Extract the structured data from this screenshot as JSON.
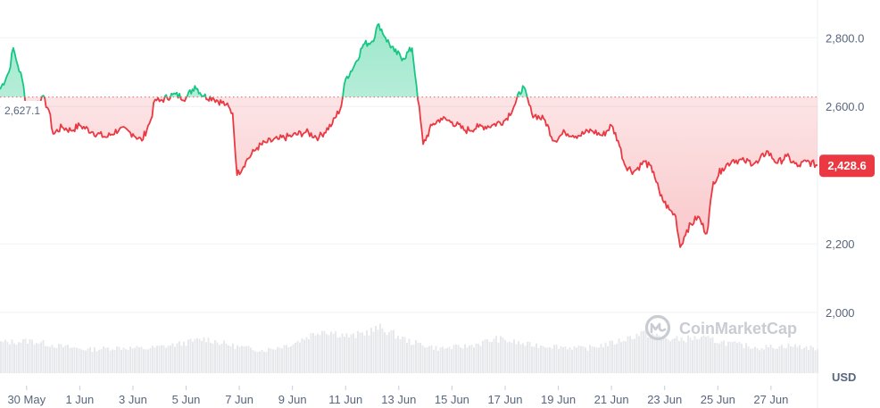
{
  "chart_data": {
    "type": "area",
    "currency": "USD",
    "reference_value": 2627.1,
    "reference_label": "2,627.1",
    "last_value": 2428.6,
    "last_label": "2,428.6",
    "ylim": [
      1870,
      2910
    ],
    "y_ticks": [
      {
        "value": 2000,
        "label": "2,000"
      },
      {
        "value": 2200,
        "label": "2,200"
      },
      {
        "value": 2600,
        "label": "2,600.0"
      },
      {
        "value": 2800,
        "label": "2,800.0"
      }
    ],
    "x_range": [
      "2024-05-29",
      "2024-06-28 18:00"
    ],
    "x_ticks": [
      {
        "date": "2024-05-30",
        "label": "30 May"
      },
      {
        "date": "2024-06-01",
        "label": "1 Jun"
      },
      {
        "date": "2024-06-03",
        "label": "3 Jun"
      },
      {
        "date": "2024-06-05",
        "label": "5 Jun"
      },
      {
        "date": "2024-06-07",
        "label": "7 Jun"
      },
      {
        "date": "2024-06-09",
        "label": "9 Jun"
      },
      {
        "date": "2024-06-11",
        "label": "11 Jun"
      },
      {
        "date": "2024-06-13",
        "label": "13 Jun"
      },
      {
        "date": "2024-06-15",
        "label": "15 Jun"
      },
      {
        "date": "2024-06-17",
        "label": "17 Jun"
      },
      {
        "date": "2024-06-19",
        "label": "19 Jun"
      },
      {
        "date": "2024-06-21",
        "label": "21 Jun"
      },
      {
        "date": "2024-06-23",
        "label": "23 Jun"
      },
      {
        "date": "2024-06-25",
        "label": "25 Jun"
      },
      {
        "date": "2024-06-27",
        "label": "27 Jun"
      }
    ],
    "series": [
      {
        "points": [
          [
            "2024-05-29 00:00",
            2650
          ],
          [
            "2024-05-29 08:00",
            2700
          ],
          [
            "2024-05-29 12:00",
            2770
          ],
          [
            "2024-05-29 16:00",
            2720
          ],
          [
            "2024-05-29 20:00",
            2680
          ],
          [
            "2024-05-30 00:00",
            2600
          ],
          [
            "2024-05-30 04:00",
            2585
          ],
          [
            "2024-05-30 10:00",
            2615
          ],
          [
            "2024-05-30 14:00",
            2630
          ],
          [
            "2024-05-30 20:00",
            2590
          ],
          [
            "2024-05-31 00:00",
            2520
          ],
          [
            "2024-05-31 08:00",
            2540
          ],
          [
            "2024-05-31 16:00",
            2530
          ],
          [
            "2024-06-01 00:00",
            2545
          ],
          [
            "2024-06-01 12:00",
            2525
          ],
          [
            "2024-06-02 00:00",
            2510
          ],
          [
            "2024-06-02 12:00",
            2535
          ],
          [
            "2024-06-03 00:00",
            2520
          ],
          [
            "2024-06-03 08:00",
            2500
          ],
          [
            "2024-06-03 16:00",
            2560
          ],
          [
            "2024-06-03 20:00",
            2620
          ],
          [
            "2024-06-04 00:00",
            2615
          ],
          [
            "2024-06-04 12:00",
            2635
          ],
          [
            "2024-06-05 00:00",
            2625
          ],
          [
            "2024-06-05 08:00",
            2660
          ],
          [
            "2024-06-05 16:00",
            2630
          ],
          [
            "2024-06-06 00:00",
            2625
          ],
          [
            "2024-06-06 12:00",
            2605
          ],
          [
            "2024-06-06 18:00",
            2580
          ],
          [
            "2024-06-06 22:00",
            2400
          ],
          [
            "2024-06-07 06:00",
            2440
          ],
          [
            "2024-06-07 16:00",
            2480
          ],
          [
            "2024-06-08 00:00",
            2495
          ],
          [
            "2024-06-08 12:00",
            2505
          ],
          [
            "2024-06-09 00:00",
            2515
          ],
          [
            "2024-06-09 12:00",
            2525
          ],
          [
            "2024-06-10 00:00",
            2510
          ],
          [
            "2024-06-10 12:00",
            2550
          ],
          [
            "2024-06-10 20:00",
            2600
          ],
          [
            "2024-06-11 00:00",
            2680
          ],
          [
            "2024-06-11 08:00",
            2720
          ],
          [
            "2024-06-11 16:00",
            2780
          ],
          [
            "2024-06-12 00:00",
            2790
          ],
          [
            "2024-06-12 06:00",
            2840
          ],
          [
            "2024-06-12 12:00",
            2800
          ],
          [
            "2024-06-12 20:00",
            2760
          ],
          [
            "2024-06-13 04:00",
            2740
          ],
          [
            "2024-06-13 12:00",
            2770
          ],
          [
            "2024-06-13 16:00",
            2660
          ],
          [
            "2024-06-13 22:00",
            2490
          ],
          [
            "2024-06-14 06:00",
            2545
          ],
          [
            "2024-06-14 14:00",
            2565
          ],
          [
            "2024-06-15 00:00",
            2555
          ],
          [
            "2024-06-15 12:00",
            2530
          ],
          [
            "2024-06-16 00:00",
            2540
          ],
          [
            "2024-06-16 12:00",
            2545
          ],
          [
            "2024-06-17 00:00",
            2560
          ],
          [
            "2024-06-17 08:00",
            2600
          ],
          [
            "2024-06-17 16:00",
            2660
          ],
          [
            "2024-06-18 00:00",
            2580
          ],
          [
            "2024-06-18 12:00",
            2560
          ],
          [
            "2024-06-18 20:00",
            2500
          ],
          [
            "2024-06-19 06:00",
            2525
          ],
          [
            "2024-06-19 18:00",
            2515
          ],
          [
            "2024-06-20 06:00",
            2530
          ],
          [
            "2024-06-20 16:00",
            2515
          ],
          [
            "2024-06-21 00:00",
            2545
          ],
          [
            "2024-06-21 06:00",
            2500
          ],
          [
            "2024-06-21 12:00",
            2430
          ],
          [
            "2024-06-21 20:00",
            2410
          ],
          [
            "2024-06-22 06:00",
            2440
          ],
          [
            "2024-06-22 14:00",
            2410
          ],
          [
            "2024-06-22 20:00",
            2340
          ],
          [
            "2024-06-23 04:00",
            2300
          ],
          [
            "2024-06-23 10:00",
            2280
          ],
          [
            "2024-06-23 14:00",
            2190
          ],
          [
            "2024-06-23 20:00",
            2240
          ],
          [
            "2024-06-24 06:00",
            2280
          ],
          [
            "2024-06-24 14:00",
            2230
          ],
          [
            "2024-06-24 20:00",
            2380
          ],
          [
            "2024-06-25 04:00",
            2420
          ],
          [
            "2024-06-25 14:00",
            2445
          ],
          [
            "2024-06-26 00:00",
            2440
          ],
          [
            "2024-06-26 12:00",
            2435
          ],
          [
            "2024-06-26 20:00",
            2470
          ],
          [
            "2024-06-27 06:00",
            2435
          ],
          [
            "2024-06-27 14:00",
            2455
          ],
          [
            "2024-06-28 00:00",
            2425
          ],
          [
            "2024-06-28 08:00",
            2440
          ],
          [
            "2024-06-28 18:00",
            2428.6
          ]
        ]
      }
    ],
    "volume_trend": [
      0.62,
      0.66,
      0.55,
      0.48,
      0.52,
      0.5,
      0.58,
      0.7,
      0.55,
      0.46,
      0.6,
      0.88,
      0.74,
      0.92,
      0.64,
      0.5,
      0.55,
      0.7,
      0.58,
      0.55,
      0.5,
      0.62,
      0.82,
      0.68,
      0.72,
      0.6,
      0.52,
      0.56,
      0.5
    ],
    "colors": {
      "up_line": "#16c784",
      "down_line": "#ea3943",
      "up_fill": "#16c784",
      "down_fill": "#ea3943",
      "grid": "#eff2f5",
      "reference_line": "#ea3943",
      "volume": "#e6e8ec",
      "last_badge": "#ea3943"
    }
  },
  "watermark": {
    "text": "CoinMarketCap"
  },
  "axis_unit": "USD"
}
